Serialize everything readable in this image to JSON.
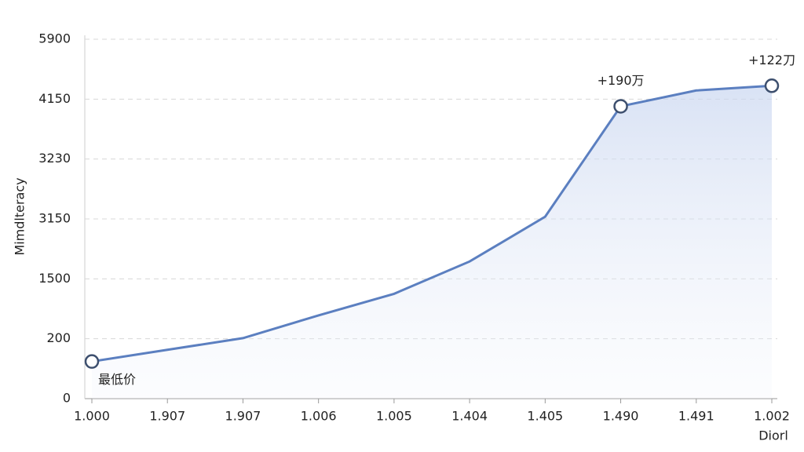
{
  "chart_data": {
    "type": "line",
    "y_label": "Mimdlteracy",
    "x_label": "Diorl",
    "categories": [
      "1.000",
      "1.907",
      "1.907",
      "1.006",
      "1.005",
      "1.404",
      "1.405",
      "1.490",
      "1.491",
      "1.002"
    ],
    "series": [
      {
        "color": "#5b7fc0",
        "values": [
          124,
          163,
          213,
          707,
          1175,
          1978,
          3153,
          4040,
          4403,
          4541
        ]
      }
    ],
    "annotations": [
      {
        "text": "最低价",
        "index": 0
      },
      {
        "text": "+190万",
        "index": 7
      },
      {
        "text": "+122刀",
        "index": 9
      }
    ],
    "ylim": [
      0,
      5900
    ],
    "yticks": [
      0,
      200,
      1500,
      3150,
      3230,
      4150,
      5900
    ],
    "grid": true
  }
}
